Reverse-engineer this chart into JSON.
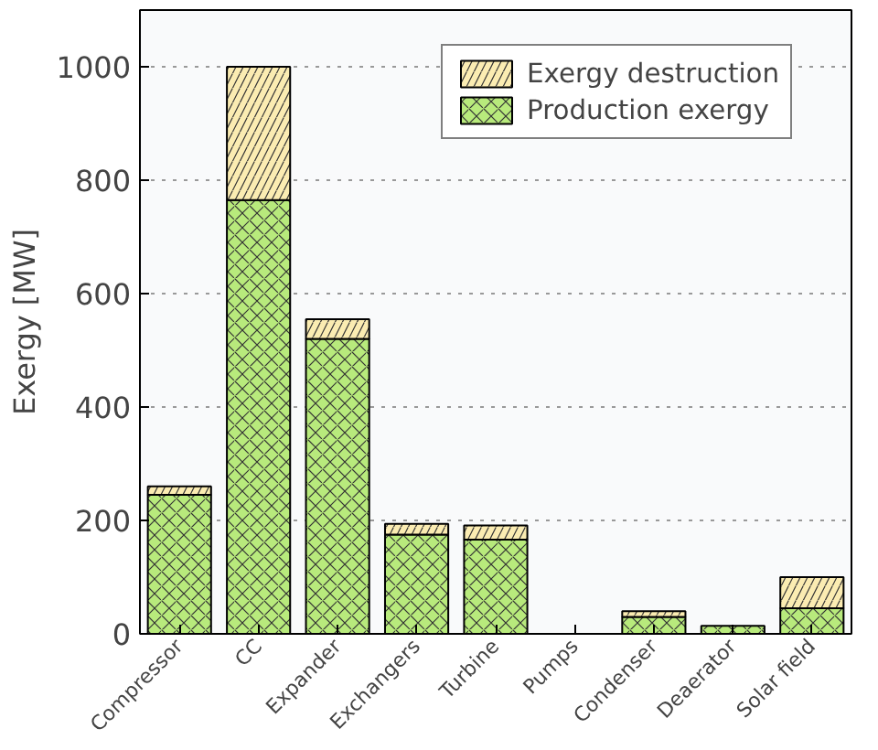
{
  "chart_data": {
    "type": "bar",
    "ylabel": "Exergy [MW]",
    "categories": [
      "Compressor",
      "CC",
      "Expander",
      "Exchangers",
      "Turbine",
      "Pumps",
      "Condenser",
      "Deaerator",
      "Solar field"
    ],
    "stacked": true,
    "series": [
      {
        "name": "Production exergy",
        "color": "#b8ea7c",
        "values": [
          245,
          765,
          520,
          175,
          166,
          0,
          30,
          14,
          45
        ]
      },
      {
        "name": "Exergy destruction",
        "color": "#fbecb2",
        "values": [
          15,
          235,
          35,
          19,
          25,
          0,
          10,
          null,
          55
        ]
      }
    ],
    "ylim": [
      0,
      1100
    ],
    "yticks": [
      0,
      200,
      400,
      600,
      800,
      1000
    ],
    "grid": "y",
    "legend": "top"
  }
}
